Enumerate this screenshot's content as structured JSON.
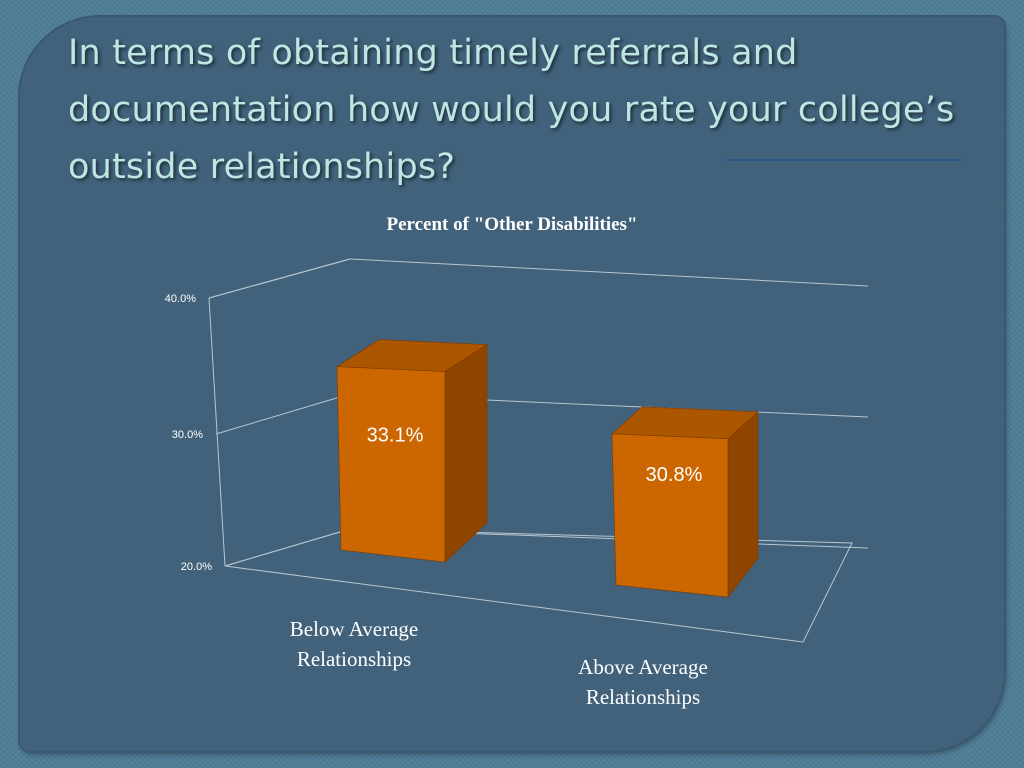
{
  "slide": {
    "title": "In terms of obtaining timely referrals and documentation how would you rate your college’s outside relationships?"
  },
  "colors": {
    "background": "#41627a",
    "title_text": "#bfe6e3",
    "bar_front": "#cc6600",
    "bar_side": "#8f4400",
    "bar_top": "#ad5600",
    "gridline": "#b9c6cf"
  },
  "chart_data": {
    "type": "bar",
    "style": "3d-column",
    "title": "Percent of \"Other Disabilities\"",
    "categories": [
      "Below Average Relationships",
      "Above Average Relationships"
    ],
    "category_lines": [
      [
        "Below Average",
        "Relationships"
      ],
      [
        "Above Average",
        "Relationships"
      ]
    ],
    "values": [
      33.1,
      30.8
    ],
    "data_labels": [
      "33.1%",
      "30.8%"
    ],
    "ylim": [
      20,
      40
    ],
    "yticks": [
      20,
      30,
      40
    ],
    "ytick_labels": [
      "20.0%",
      "30.0%",
      "40.0%"
    ],
    "grid": true,
    "legend": "none"
  }
}
